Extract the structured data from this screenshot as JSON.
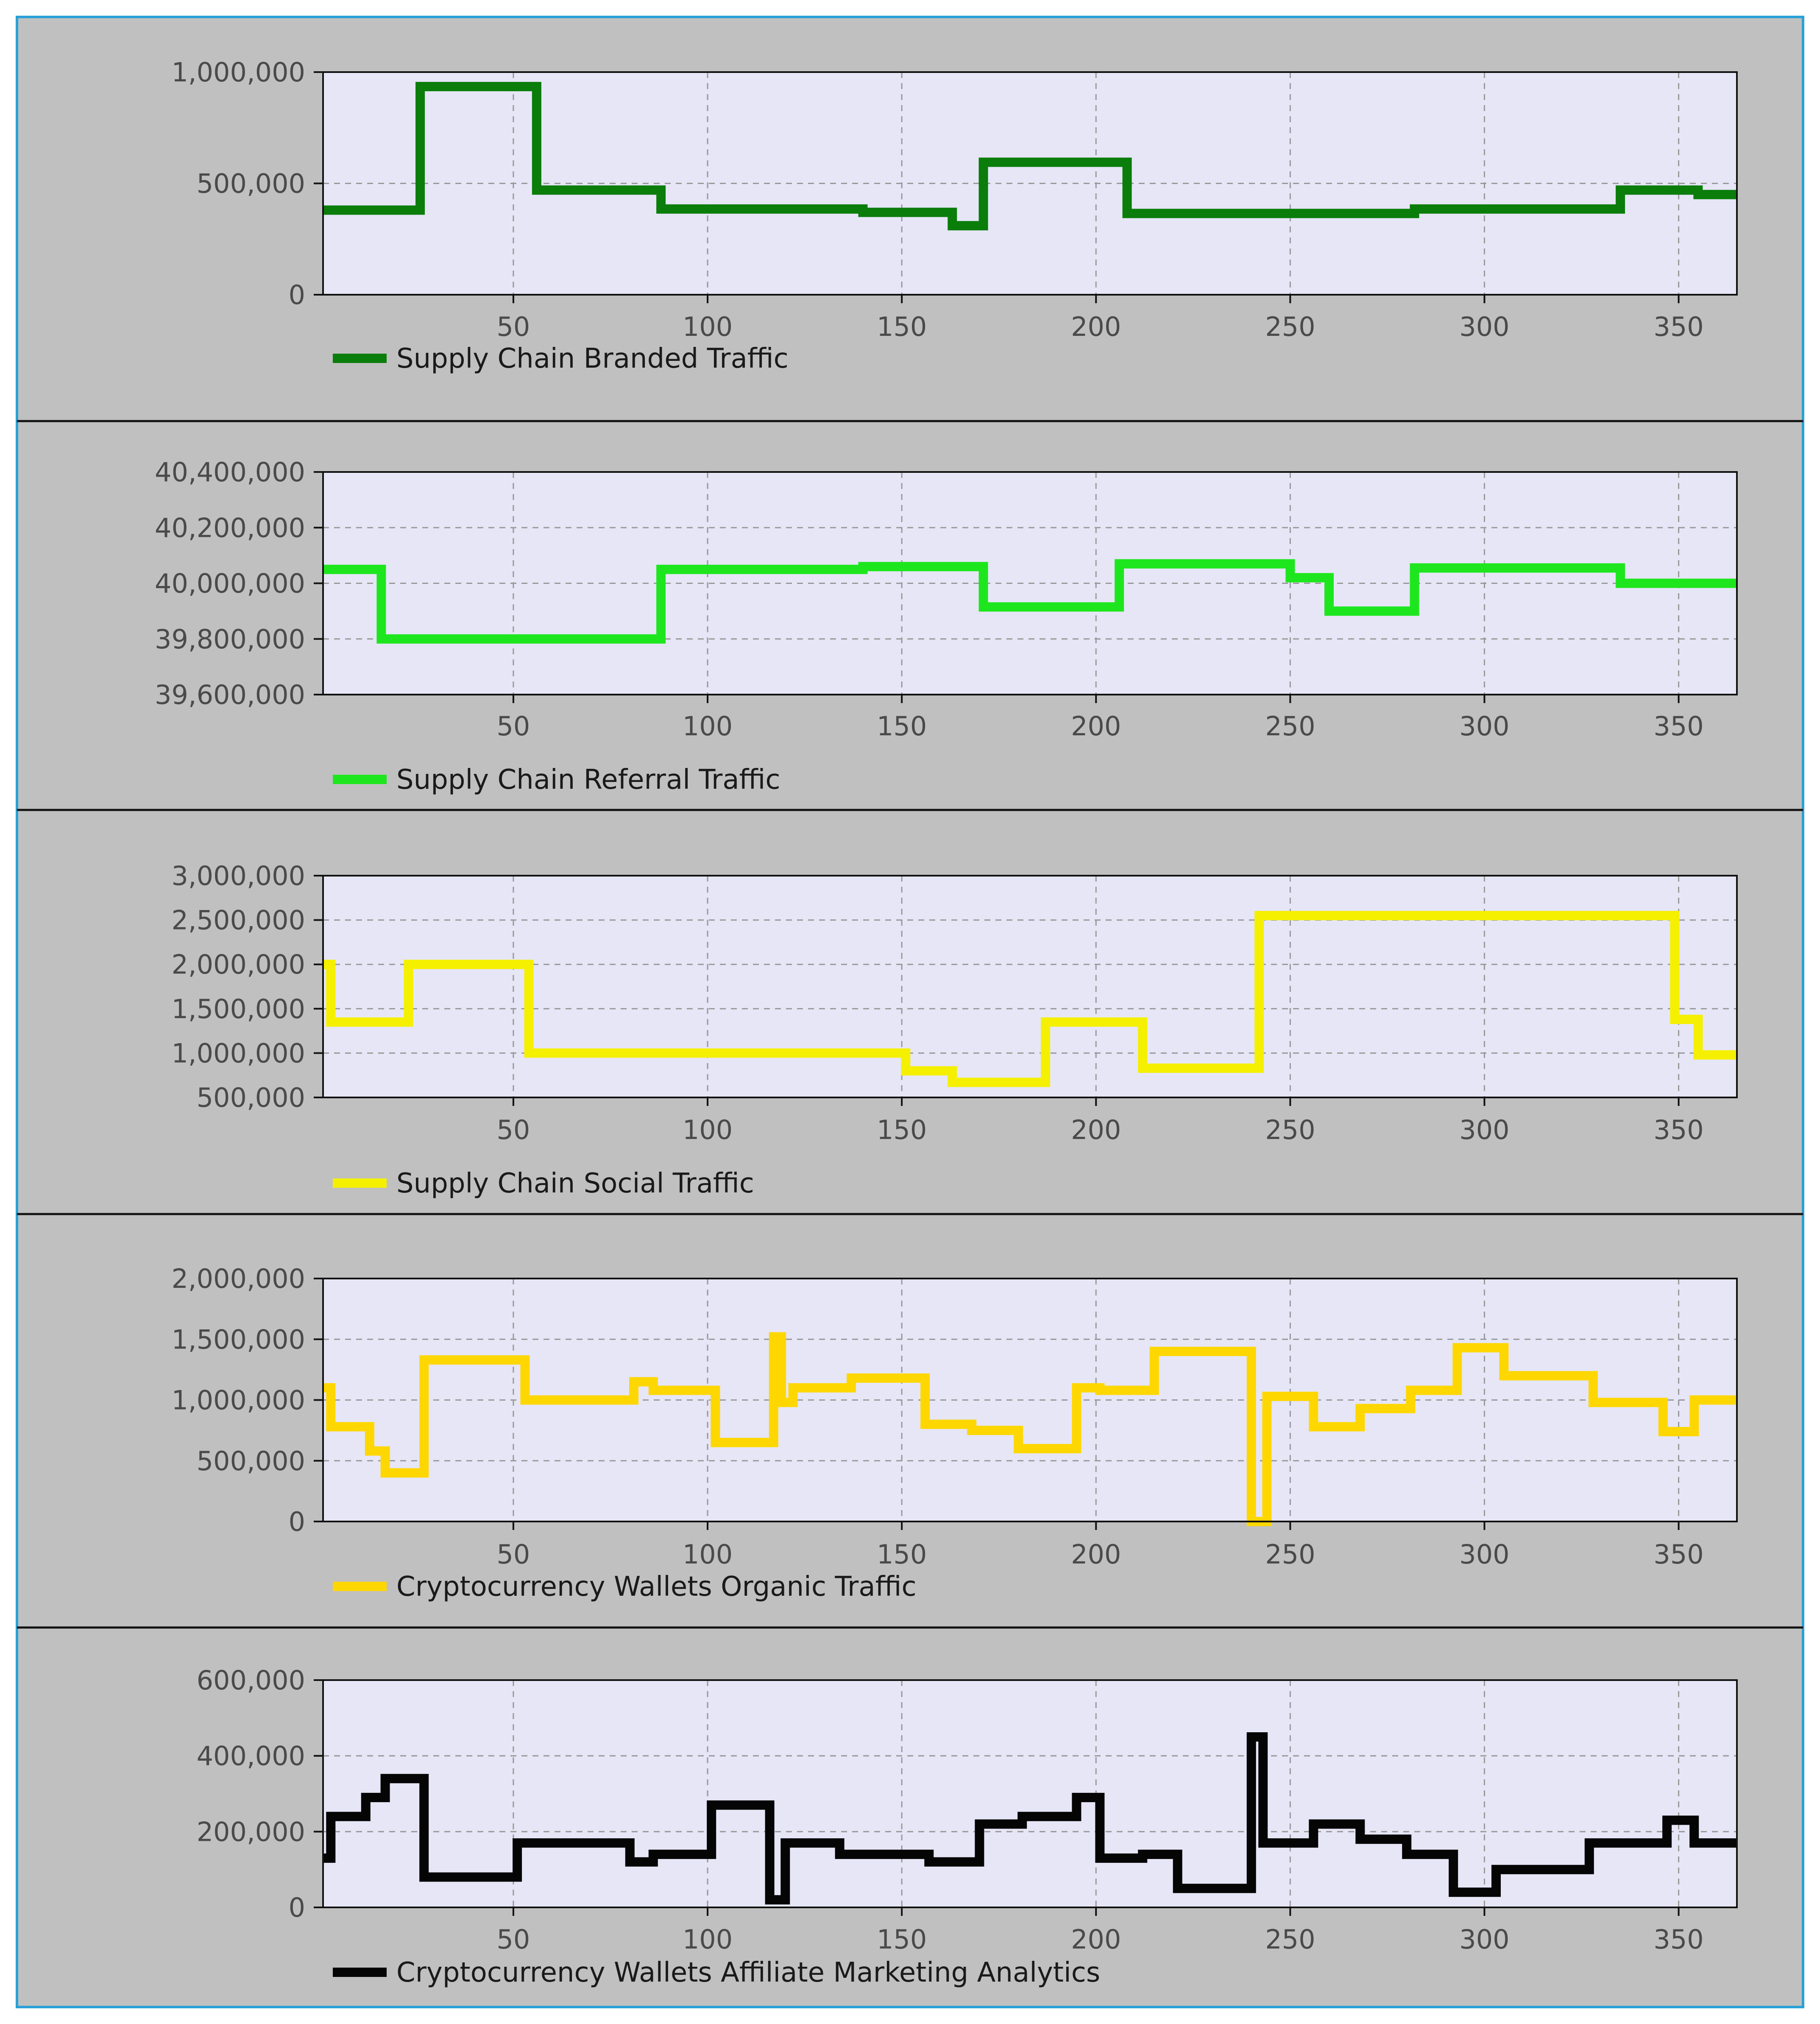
{
  "chart_data": [
    {
      "type": "line",
      "step": true,
      "series": [
        {
          "name": "Supply Chain Branded Traffic",
          "color": "#0a7d0a",
          "x": [
            1,
            26,
            26,
            56,
            56,
            88,
            88,
            140,
            140,
            163,
            163,
            171,
            171,
            208,
            208,
            282,
            282,
            335,
            335,
            355,
            355,
            365
          ],
          "values": [
            380000,
            380000,
            935000,
            935000,
            470000,
            470000,
            385000,
            385000,
            370000,
            370000,
            310000,
            310000,
            595000,
            595000,
            365000,
            365000,
            385000,
            385000,
            470000,
            470000,
            450000,
            450000
          ]
        }
      ],
      "xlim": [
        1,
        365
      ],
      "ylim": [
        0,
        1000000
      ],
      "yticks": [
        0,
        500000,
        1000000
      ],
      "ytick_labels": [
        "0",
        "500,000",
        "1,000,000"
      ],
      "xticks": [
        50,
        100,
        150,
        200,
        250,
        300,
        350
      ],
      "xtick_labels": [
        "50",
        "100",
        "150",
        "200",
        "250",
        "300",
        "350"
      ],
      "legend": "Supply Chain Branded Traffic",
      "grid": true,
      "title": "",
      "xlabel": "",
      "ylabel": ""
    },
    {
      "type": "line",
      "step": true,
      "series": [
        {
          "name": "Supply Chain Referral Traffic",
          "color": "#1ee61e",
          "x": [
            1,
            16,
            16,
            88,
            88,
            140,
            140,
            171,
            171,
            206,
            206,
            250,
            250,
            260,
            260,
            282,
            282,
            335,
            335,
            365
          ],
          "values": [
            40050000,
            40050000,
            39800000,
            39800000,
            40050000,
            40050000,
            40060000,
            40060000,
            39915000,
            39915000,
            40070000,
            40070000,
            40020000,
            40020000,
            39900000,
            39900000,
            40055000,
            40055000,
            40000000,
            40000000
          ]
        }
      ],
      "xlim": [
        1,
        365
      ],
      "ylim": [
        39600000,
        40400000
      ],
      "yticks": [
        39600000,
        39800000,
        40000000,
        40200000,
        40400000
      ],
      "ytick_labels": [
        "39,600,000",
        "39,800,000",
        "40,000,000",
        "40,200,000",
        "40,400,000"
      ],
      "xticks": [
        50,
        100,
        150,
        200,
        250,
        300,
        350
      ],
      "xtick_labels": [
        "50",
        "100",
        "150",
        "200",
        "250",
        "300",
        "350"
      ],
      "legend": "Supply Chain Referral Traffic",
      "grid": true,
      "title": "",
      "xlabel": "",
      "ylabel": ""
    },
    {
      "type": "line",
      "step": true,
      "series": [
        {
          "name": "Supply Chain Social Traffic",
          "color": "#f5f000",
          "x": [
            1,
            3,
            3,
            23,
            23,
            54,
            54,
            151,
            151,
            163,
            163,
            187,
            187,
            212,
            212,
            242,
            242,
            349,
            349,
            355,
            355,
            365
          ],
          "values": [
            2000000,
            2000000,
            1350000,
            1350000,
            2000000,
            2000000,
            1000000,
            1000000,
            800000,
            800000,
            670000,
            670000,
            1350000,
            1350000,
            830000,
            830000,
            2550000,
            2550000,
            1380000,
            1380000,
            980000,
            980000
          ]
        }
      ],
      "xlim": [
        1,
        365
      ],
      "ylim": [
        500000,
        3000000
      ],
      "yticks": [
        500000,
        1000000,
        1500000,
        2000000,
        2500000,
        3000000
      ],
      "ytick_labels": [
        "500,000",
        "1,000,000",
        "1,500,000",
        "2,000,000",
        "2,500,000",
        "3,000,000"
      ],
      "xticks": [
        50,
        100,
        150,
        200,
        250,
        300,
        350
      ],
      "xtick_labels": [
        "50",
        "100",
        "150",
        "200",
        "250",
        "300",
        "350"
      ],
      "legend": "Supply Chain Social Traffic",
      "grid": true,
      "title": "",
      "xlabel": "",
      "ylabel": ""
    },
    {
      "type": "line",
      "step": true,
      "series": [
        {
          "name": "Cryptocurrency Wallets Organic Traffic",
          "color": "#ffd700",
          "x": [
            1,
            3,
            3,
            13,
            13,
            17,
            17,
            27,
            27,
            53,
            53,
            81,
            81,
            86,
            86,
            102,
            102,
            117,
            117,
            119,
            119,
            122,
            122,
            137,
            137,
            156,
            156,
            168,
            168,
            180,
            180,
            195,
            195,
            201,
            201,
            215,
            215,
            240,
            240,
            244,
            244,
            256,
            256,
            268,
            268,
            281,
            281,
            293,
            293,
            305,
            305,
            328,
            328,
            346,
            346,
            354,
            354,
            365
          ],
          "values": [
            1100000,
            1100000,
            780000,
            780000,
            580000,
            580000,
            400000,
            400000,
            1330000,
            1330000,
            1000000,
            1000000,
            1150000,
            1150000,
            1080000,
            1080000,
            650000,
            650000,
            1520000,
            1520000,
            980000,
            980000,
            1100000,
            1100000,
            1180000,
            1180000,
            800000,
            800000,
            750000,
            750000,
            600000,
            600000,
            1100000,
            1100000,
            1080000,
            1080000,
            1400000,
            1400000,
            0,
            0,
            1030000,
            1030000,
            780000,
            780000,
            930000,
            930000,
            1080000,
            1080000,
            1430000,
            1430000,
            1200000,
            1200000,
            980000,
            980000,
            740000,
            740000,
            1000000,
            1000000
          ]
        }
      ],
      "xlim": [
        1,
        365
      ],
      "ylim": [
        0,
        2000000
      ],
      "yticks": [
        0,
        500000,
        1000000,
        1500000,
        2000000
      ],
      "ytick_labels": [
        "0",
        "500,000",
        "1,000,000",
        "1,500,000",
        "2,000,000"
      ],
      "xticks": [
        50,
        100,
        150,
        200,
        250,
        300,
        350
      ],
      "xtick_labels": [
        "50",
        "100",
        "150",
        "200",
        "250",
        "300",
        "350"
      ],
      "legend": "Cryptocurrency Wallets Organic Traffic",
      "grid": true,
      "title": "",
      "xlabel": "",
      "ylabel": ""
    },
    {
      "type": "line",
      "step": true,
      "series": [
        {
          "name": "Cryptocurrency Wallets Affiliate Marketing Analytics",
          "color": "#050505",
          "x": [
            1,
            3,
            3,
            12,
            12,
            17,
            17,
            27,
            27,
            51,
            51,
            80,
            80,
            86,
            86,
            101,
            101,
            116,
            116,
            120,
            120,
            134,
            134,
            157,
            157,
            170,
            170,
            181,
            181,
            195,
            195,
            201,
            201,
            212,
            212,
            221,
            221,
            240,
            240,
            243,
            243,
            256,
            256,
            268,
            268,
            280,
            280,
            292,
            292,
            303,
            303,
            327,
            327,
            347,
            347,
            354,
            354,
            365
          ],
          "values": [
            130000,
            130000,
            240000,
            240000,
            290000,
            290000,
            340000,
            340000,
            80000,
            80000,
            170000,
            170000,
            120000,
            120000,
            140000,
            140000,
            270000,
            270000,
            20000,
            20000,
            170000,
            170000,
            140000,
            140000,
            120000,
            120000,
            220000,
            220000,
            240000,
            240000,
            290000,
            290000,
            130000,
            130000,
            140000,
            140000,
            50000,
            50000,
            450000,
            450000,
            170000,
            170000,
            220000,
            220000,
            180000,
            180000,
            140000,
            140000,
            40000,
            40000,
            100000,
            100000,
            170000,
            170000,
            230000,
            230000,
            170000,
            170000
          ]
        }
      ],
      "xlim": [
        1,
        365
      ],
      "ylim": [
        0,
        600000
      ],
      "yticks": [
        0,
        200000,
        400000,
        600000
      ],
      "ytick_labels": [
        "0",
        "200,000",
        "400,000",
        "600,000"
      ],
      "xticks": [
        50,
        100,
        150,
        200,
        250,
        300,
        350
      ],
      "xtick_labels": [
        "50",
        "100",
        "150",
        "200",
        "250",
        "300",
        "350"
      ],
      "legend": "Cryptocurrency Wallets Affiliate Marketing Analytics",
      "grid": true,
      "title": "",
      "xlabel": "",
      "ylabel": ""
    }
  ]
}
